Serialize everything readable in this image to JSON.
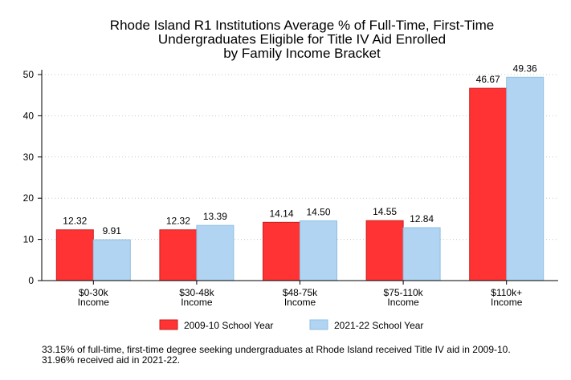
{
  "chart_data": {
    "type": "bar",
    "title_lines": [
      "Rhode Island R1 Institutions Average % of Full-Time, First-Time",
      "Undergraduates Eligible for Title IV Aid Enrolled",
      "by Family Income Bracket"
    ],
    "categories": [
      [
        "$0-30k",
        "Income"
      ],
      [
        "$30-48k",
        "Income"
      ],
      [
        "$48-75k",
        "Income"
      ],
      [
        "$75-110k",
        "Income"
      ],
      [
        "$110k+",
        "Income"
      ]
    ],
    "series": [
      {
        "name": "2009-10 School Year",
        "values": [
          12.32,
          12.32,
          14.14,
          14.55,
          46.67
        ],
        "labels": [
          "12.32",
          "12.32",
          "14.14",
          "14.55",
          "46.67"
        ],
        "color": "#ff3333"
      },
      {
        "name": "2021-22 School Year",
        "values": [
          9.91,
          13.39,
          14.5,
          12.84,
          49.36
        ],
        "labels": [
          "9.91",
          "13.39",
          "14.50",
          "12.84",
          "49.36"
        ],
        "color": "#b0d4f1"
      }
    ],
    "ylim": [
      0,
      50
    ],
    "yticks": [
      "0",
      "10",
      "20",
      "30",
      "40",
      "50"
    ],
    "grid": true,
    "legend_position": "bottom"
  },
  "footnote": "33.15% of full-time, first-time degree seeking undergraduates at Rhode Island received Title IV aid in 2009-10. 31.96% received aid in 2021-22."
}
